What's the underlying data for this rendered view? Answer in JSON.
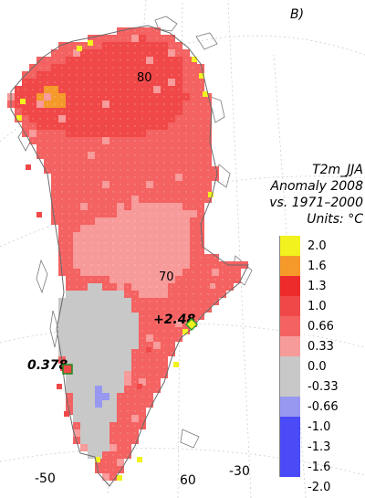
{
  "panel_label": "B)",
  "legend": {
    "title_lines": [
      "T2m_JJA",
      "Anomaly 2008",
      "vs. 1971–2000",
      "Units: °C"
    ],
    "ticks": [
      "2.0",
      "1.6",
      "1.3",
      "1.0",
      "0.66",
      "0.33",
      "0.0",
      "-0.33",
      "-0.66",
      "-1.0",
      "-1.3",
      "-1.6",
      "-2.0"
    ],
    "colors": [
      "#f2f21e",
      "#f59a2a",
      "#ee2b2b",
      "#f04848",
      "#f46262",
      "#f79a9a",
      "#c8c8c8",
      "#c8c8c8",
      "#9898f0",
      "#4a4af6",
      "#4a4af6",
      "#4a4af6"
    ]
  },
  "map": {
    "latitude_labels": [
      "80",
      "70"
    ],
    "longitude_labels": [
      "-50",
      "60",
      "-30"
    ],
    "stations": [
      {
        "label": "+2.48",
        "marker": "diamond",
        "marker_color": "#3cb43c",
        "fill": "#f2f21e"
      },
      {
        "label": "0.378",
        "marker": "square",
        "marker_color": "#1a8c1a",
        "fill": "#f04848"
      }
    ],
    "colors": {
      "ocean": "#ffffff",
      "coast": "#7a7a7a",
      "ice_high": "#f04848",
      "ice_mid": "#f46262",
      "ice_low": "#f79a9a",
      "zero": "#c8c8c8",
      "neg": "#9898f0",
      "hot": "#f59a2a",
      "peak": "#f2f21e"
    }
  }
}
